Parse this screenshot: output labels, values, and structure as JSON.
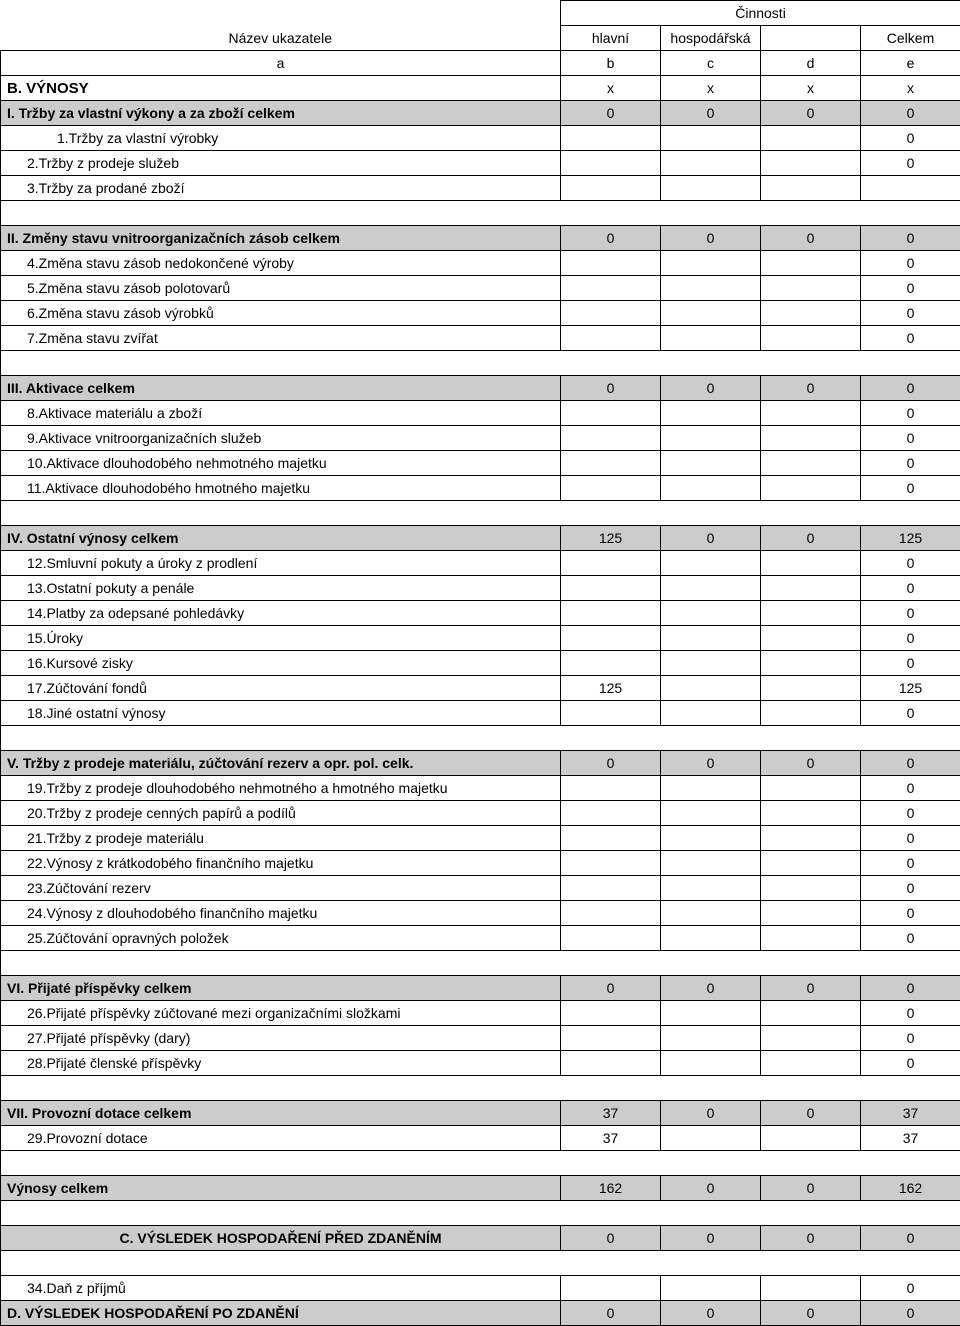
{
  "header": {
    "cinnosti": "Činnosti",
    "nazev": "Název ukazatele",
    "hlavni": "hlavní",
    "hospodarska": "hospodářská",
    "celkem": "Celkem",
    "a": "a",
    "b": "b",
    "c": "c",
    "d": "d",
    "e": "e"
  },
  "r": [
    {
      "t": "hdr",
      "label": "B. VÝNOSY",
      "b": "x",
      "c": "x",
      "d": "x",
      "e": "x",
      "bold": true,
      "big": true
    },
    {
      "t": "hdr",
      "label": "I.  Tržby za vlastní výkony a za zboží celkem",
      "b": "0",
      "c": "0",
      "d": "0",
      "e": "0",
      "shade": true,
      "bold": true
    },
    {
      "t": "row",
      "label": "1.Tržby za vlastní výrobky",
      "indent": 2,
      "e": "0"
    },
    {
      "t": "row",
      "label": "2.Tržby z prodeje služeb",
      "indent": 1,
      "e": "0"
    },
    {
      "t": "row",
      "label": "3.Tržby za prodané zboží",
      "indent": 1
    },
    {
      "t": "spacer"
    },
    {
      "t": "hdr",
      "label": "II.  Změny stavu vnitroorganizačních zásob celkem",
      "b": "0",
      "c": "0",
      "d": "0",
      "e": "0",
      "shade": true,
      "bold": true
    },
    {
      "t": "row",
      "label": "4.Změna stavu zásob nedokončené výroby",
      "indent": 1,
      "e": "0"
    },
    {
      "t": "row",
      "label": "5.Změna stavu zásob polotovarů",
      "indent": 1,
      "e": "0"
    },
    {
      "t": "row",
      "label": "6.Změna stavu zásob výrobků",
      "indent": 1,
      "e": "0"
    },
    {
      "t": "row",
      "label": "7.Změna stavu zvířat",
      "indent": 1,
      "e": "0"
    },
    {
      "t": "spacer"
    },
    {
      "t": "hdr",
      "label": "III.  Aktivace celkem",
      "b": "0",
      "c": "0",
      "d": "0",
      "e": "0",
      "shade": true,
      "bold": true
    },
    {
      "t": "row",
      "label": "8.Aktivace materiálu a zboží",
      "indent": 1,
      "e": "0"
    },
    {
      "t": "row",
      "label": "9.Aktivace vnitroorganizačních služeb",
      "indent": 1,
      "e": "0"
    },
    {
      "t": "row",
      "label": "10.Aktivace dlouhodobého nehmotného majetku",
      "indent": 1,
      "e": "0"
    },
    {
      "t": "row",
      "label": "11.Aktivace dlouhodobého hmotného majetku",
      "indent": 1,
      "e": "0"
    },
    {
      "t": "spacer"
    },
    {
      "t": "hdr",
      "label": "IV.  Ostatní výnosy celkem",
      "b": "125",
      "c": "0",
      "d": "0",
      "e": "125",
      "shade": true,
      "bold": true
    },
    {
      "t": "row",
      "label": "12.Smluvní pokuty a úroky z prodlení",
      "indent": 1,
      "e": "0"
    },
    {
      "t": "row",
      "label": "13.Ostatní pokuty a penále",
      "indent": 1,
      "e": "0"
    },
    {
      "t": "row",
      "label": "14.Platby za odepsané pohledávky",
      "indent": 1,
      "e": "0"
    },
    {
      "t": "row",
      "label": "15.Úroky",
      "indent": 1,
      "e": "0"
    },
    {
      "t": "row",
      "label": "16.Kursové zisky",
      "indent": 1,
      "e": "0"
    },
    {
      "t": "row",
      "label": "17.Zúčtování fondů",
      "indent": 1,
      "b": "125",
      "e": "125"
    },
    {
      "t": "row",
      "label": "18.Jiné ostatní výnosy",
      "indent": 1,
      "e": "0"
    },
    {
      "t": "spacer"
    },
    {
      "t": "hdr",
      "label": "V.  Tržby z prodeje materiálu, zúčtování rezerv a opr. pol. celk.",
      "b": "0",
      "c": "0",
      "d": "0",
      "e": "0",
      "shade": true,
      "bold": true
    },
    {
      "t": "row",
      "label": "19.Tržby z prodeje dlouhodobého nehmotného a hmotného majetku",
      "indent": 1,
      "e": "0"
    },
    {
      "t": "row",
      "label": "20.Tržby z prodeje cenných papírů a podílů",
      "indent": 1,
      "e": "0"
    },
    {
      "t": "row",
      "label": "21.Tržby z prodeje materiálu",
      "indent": 1,
      "e": "0"
    },
    {
      "t": "row",
      "label": "22.Výnosy z krátkodobého finančního majetku",
      "indent": 1,
      "e": "0"
    },
    {
      "t": "row",
      "label": "23.Zúčtování rezerv",
      "indent": 1,
      "e": "0"
    },
    {
      "t": "row",
      "label": "24.Výnosy z dlouhodobého finančního majetku",
      "indent": 1,
      "e": "0"
    },
    {
      "t": "row",
      "label": "25.Zúčtování opravných položek",
      "indent": 1,
      "e": "0"
    },
    {
      "t": "spacer"
    },
    {
      "t": "hdr",
      "label": "VI.  Přijaté příspěvky celkem",
      "b": "0",
      "c": "0",
      "d": "0",
      "e": "0",
      "shade": true,
      "bold": true
    },
    {
      "t": "row",
      "label": "26.Přijaté příspěvky zúčtované mezi organizačními složkami",
      "indent": 1,
      "e": "0"
    },
    {
      "t": "row",
      "label": "27.Přijaté příspěvky (dary)",
      "indent": 1,
      "e": "0"
    },
    {
      "t": "row",
      "label": "28.Přijaté členské příspěvky",
      "indent": 1,
      "e": "0"
    },
    {
      "t": "spacer"
    },
    {
      "t": "hdr",
      "label": "VII.  Provozní dotace celkem",
      "b": "37",
      "c": "0",
      "d": "0",
      "e": "37",
      "shade": true,
      "bold": true
    },
    {
      "t": "row",
      "label": "29.Provozní dotace",
      "indent": 1,
      "b": "37",
      "e": "37"
    },
    {
      "t": "spacer"
    },
    {
      "t": "hdr",
      "label": "Výnosy celkem",
      "b": "162",
      "c": "0",
      "d": "0",
      "e": "162",
      "shade": true,
      "bold": true
    },
    {
      "t": "spacer"
    },
    {
      "t": "hdr",
      "label": "C.  VÝSLEDEK HOSPODAŘENÍ PŘED ZDANĚNÍM",
      "b": "0",
      "c": "0",
      "d": "0",
      "e": "0",
      "shade": true,
      "bold": true,
      "centerLabel": true
    },
    {
      "t": "spacer"
    },
    {
      "t": "row",
      "label": "34.Daň z příjmů",
      "indent": 1,
      "e": "0"
    },
    {
      "t": "hdr",
      "label": "D.  VÝSLEDEK HOSPODAŘENÍ PO ZDANĚNÍ",
      "b": "0",
      "c": "0",
      "d": "0",
      "e": "0",
      "shade": true,
      "bold": true
    }
  ]
}
